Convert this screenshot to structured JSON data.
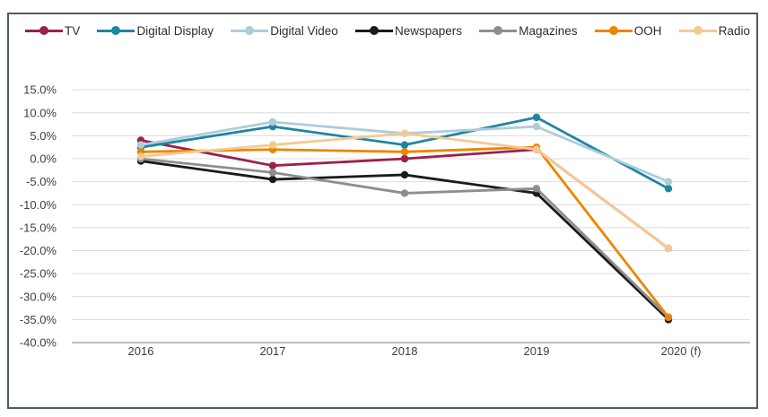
{
  "figure": {
    "background": "#ffffff",
    "border_color": "#4d5d68",
    "gridline_color": "#dcdcdc",
    "axis_line_color": "#a8a8a8",
    "tick_text_color": "#3f3f3f"
  },
  "chart_data": {
    "type": "line",
    "title": "",
    "xlabel": "",
    "ylabel": "",
    "grid": true,
    "legend_position": "top",
    "categories": [
      "2016",
      "2017",
      "2018",
      "2019",
      "2020 (f)"
    ],
    "series": [
      {
        "name": "TV",
        "color": "#9a2050",
        "values": [
          4.0,
          -1.5,
          0.0,
          2.0,
          -19.5
        ]
      },
      {
        "name": "Digital Display",
        "color": "#1f86a1",
        "values": [
          2.5,
          7.0,
          3.0,
          9.0,
          -6.5
        ]
      },
      {
        "name": "Digital Video",
        "color": "#aecdd8",
        "values": [
          3.0,
          8.0,
          5.5,
          7.0,
          -5.0
        ]
      },
      {
        "name": "Newspapers",
        "color": "#1a1a1a",
        "values": [
          -0.5,
          -4.5,
          -3.5,
          -7.5,
          -35.0
        ]
      },
      {
        "name": "Magazines",
        "color": "#8e8e8c",
        "values": [
          0.0,
          -3.0,
          -7.5,
          -6.5,
          -34.5
        ]
      },
      {
        "name": "OOH",
        "color": "#ec8500",
        "values": [
          1.5,
          2.0,
          1.5,
          2.5,
          -34.5
        ]
      },
      {
        "name": "Radio",
        "color": "#f6c993",
        "values": [
          0.5,
          3.0,
          5.5,
          2.0,
          -19.5
        ]
      }
    ],
    "ylim": [
      -40,
      15
    ],
    "y_ticks": [
      15,
      10,
      5,
      0,
      -5,
      -10,
      -15,
      -20,
      -25,
      -30,
      -35,
      -40
    ],
    "y_tick_labels": [
      "15.0%",
      "10.0%",
      "5.0%",
      "0.0%",
      "-5.0%",
      "-10.0%",
      "-15.0%",
      "-20.0%",
      "-25.0%",
      "-30.0%",
      "-35.0%",
      "-40.0%"
    ]
  }
}
